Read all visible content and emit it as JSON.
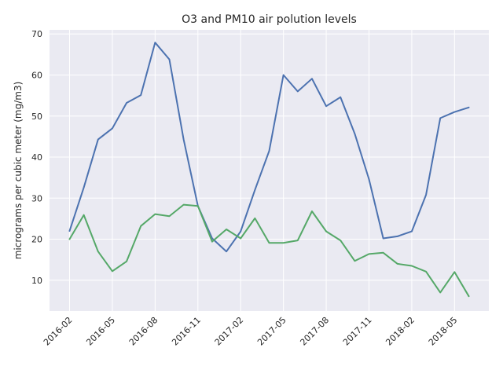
{
  "chart_data": {
    "type": "line",
    "title": "O3 and PM10 air polution levels",
    "xlabel": "",
    "ylabel": "micrograms per cubic meter (mg/m3)",
    "grid": true,
    "legend": "none",
    "x": [
      "2016-02",
      "2016-03",
      "2016-04",
      "2016-05",
      "2016-06",
      "2016-07",
      "2016-08",
      "2016-09",
      "2016-10",
      "2016-11",
      "2016-12",
      "2017-01",
      "2017-02",
      "2017-03",
      "2017-04",
      "2017-05",
      "2017-06",
      "2017-07",
      "2017-08",
      "2017-09",
      "2017-10",
      "2017-11",
      "2017-12",
      "2018-01",
      "2018-02",
      "2018-03",
      "2018-04",
      "2018-05",
      "2018-06"
    ],
    "x_ticks": [
      "2016-02",
      "2016-05",
      "2016-08",
      "2016-11",
      "2017-02",
      "2017-05",
      "2017-08",
      "2017-11",
      "2018-02",
      "2018-05"
    ],
    "ylim": [
      2.5,
      71
    ],
    "y_ticks": [
      10,
      20,
      30,
      40,
      50,
      60,
      70
    ],
    "series": [
      {
        "color": "#4c72b0",
        "values": [
          22.0,
          32.6,
          44.3,
          47.0,
          53.2,
          55.1,
          67.9,
          63.8,
          44.3,
          28.1,
          20.2,
          17.0,
          21.9,
          32.0,
          41.5,
          60.0,
          56.0,
          59.1,
          52.4,
          54.6,
          45.7,
          34.6,
          20.2,
          20.7,
          21.9,
          30.8,
          49.5,
          51.0,
          52.1
        ]
      },
      {
        "color": "#55a868",
        "values": [
          20.0,
          25.9,
          17.0,
          12.2,
          14.6,
          23.2,
          26.1,
          25.6,
          28.4,
          28.1,
          19.4,
          22.4,
          20.2,
          25.1,
          19.1,
          19.1,
          19.7,
          26.8,
          21.9,
          19.7,
          14.7,
          16.4,
          16.7,
          14.0,
          13.5,
          12.1,
          7.0,
          12.0,
          6.1
        ]
      }
    ]
  }
}
